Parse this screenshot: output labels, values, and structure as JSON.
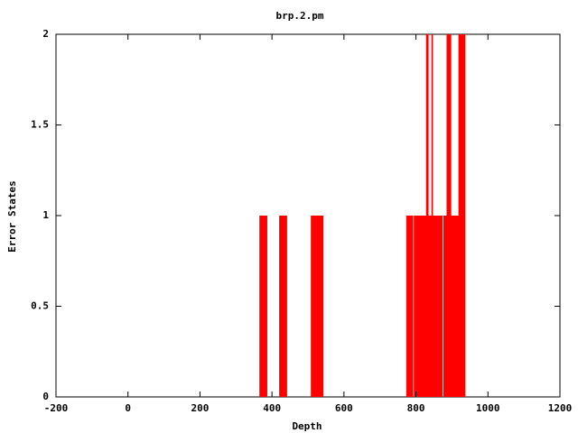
{
  "chart_data": {
    "type": "impulse",
    "title": "brp.2.pm",
    "x_label": "Depth",
    "y_label": "Error States",
    "x": [
      367,
      370,
      373,
      376,
      379,
      382,
      385,
      422,
      425,
      428,
      431,
      434,
      437,
      440,
      510,
      513,
      517,
      520,
      523,
      526,
      529,
      532,
      535,
      538,
      541,
      775,
      778,
      781,
      784,
      787,
      790,
      796,
      799,
      803,
      806,
      809,
      812,
      815,
      818,
      821,
      824,
      827,
      830,
      833,
      836,
      839,
      842,
      845,
      848,
      851,
      854,
      857,
      860,
      863,
      866,
      869,
      872,
      878,
      881,
      884,
      887,
      890,
      893,
      896,
      899,
      902,
      905,
      908,
      911,
      914,
      917,
      920,
      923,
      926,
      929,
      932,
      935
    ],
    "values": [
      1,
      1,
      1,
      1,
      1,
      1,
      1,
      1,
      1,
      1,
      1,
      1,
      1,
      1,
      1,
      1,
      1,
      1,
      1,
      1,
      1,
      1,
      1,
      1,
      1,
      1,
      1,
      1,
      1,
      1,
      1,
      1,
      1,
      1,
      1,
      1,
      1,
      1,
      1,
      1,
      1,
      1,
      2,
      2,
      1,
      1,
      1,
      2,
      1,
      1,
      1,
      1,
      1,
      1,
      1,
      1,
      1,
      1,
      1,
      1,
      2,
      2,
      2,
      2,
      1,
      1,
      1,
      1,
      1,
      1,
      1,
      2,
      2,
      2,
      2,
      2,
      2
    ],
    "color": "#ff0000",
    "xlim": [
      -200,
      1200
    ],
    "xticks": [
      -200,
      0,
      200,
      400,
      600,
      800,
      1000,
      1200
    ],
    "ylim": [
      0,
      2
    ],
    "yticks": [
      0,
      0.5,
      1,
      1.5,
      2
    ],
    "grid": false
  }
}
